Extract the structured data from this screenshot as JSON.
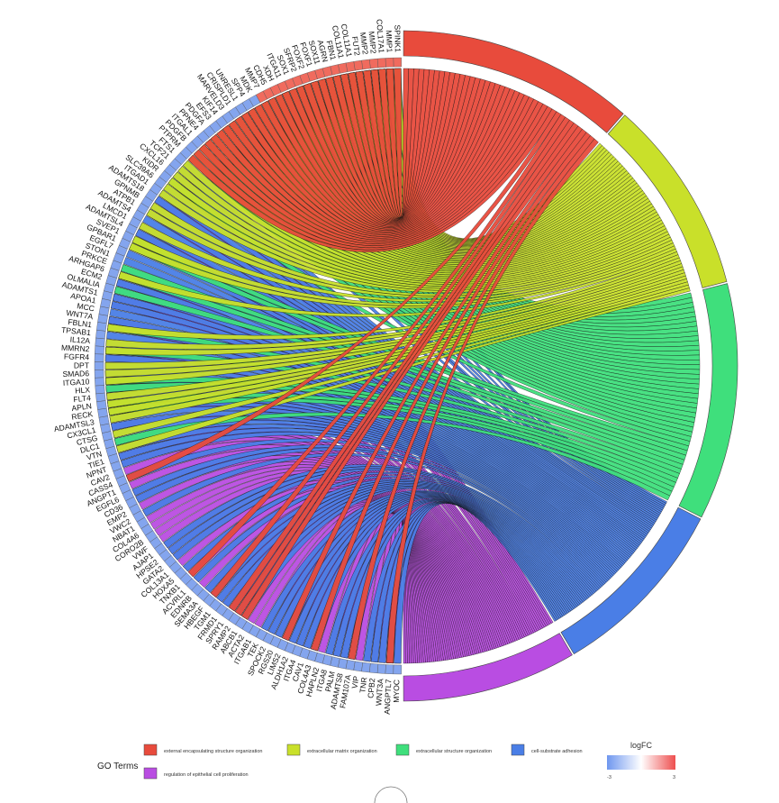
{
  "chart_data": {
    "type": "chord",
    "genes_ordered_from_top_clockwise_on_left": [
      "SPINK1",
      "MMP1",
      "COL17A1",
      "MMP2",
      "MMP2",
      "FUT2",
      "COL11A1",
      "COL11A1",
      "FBN1",
      "AGRN",
      "SOX11",
      "FOXF1",
      "FOXF2",
      "SFRP2",
      "SOX1",
      "ITGA11",
      "XDH",
      "CDH5",
      "MMP7",
      "MDK",
      "SPP4",
      "UNRESL1",
      "CRISPLD1",
      "MARVELD3",
      "KIF14",
      "EFS3",
      "PDGFA",
      "PPNE4",
      "ITGAL1",
      "PDGFB",
      "PTPRM",
      "FTS1",
      "TCF21",
      "CXCL16",
      "KIDR",
      "SLC39A6",
      "ITGAD1",
      "ADAMTS18",
      "GPNMB",
      "ATPB1",
      "ADAMTS4",
      "LMCD1",
      "ADAMTSL4",
      "SVEP1",
      "GPBAR1",
      "EGFL7",
      "STON1",
      "PRKCE",
      "ARHGAP6",
      "ECM2",
      "OLMALIA",
      "ADAMTS1",
      "APOA1",
      "MCC",
      "WNT7A",
      "FBLN1",
      "TPSAB1",
      "IL12A",
      "MMRN2",
      "FGFR4",
      "DPT",
      "SMAD6",
      "ITGA10",
      "HLX",
      "FLT4",
      "APLN",
      "RECK",
      "ADAMTSL3",
      "CX3CL1",
      "CTSG",
      "DLC1",
      "VTN",
      "TIE1",
      "NPNT",
      "CAV2",
      "CASS4",
      "ANGPT1",
      "EGFL6",
      "CD36",
      "EMP2",
      "VWC2",
      "NBAT1",
      "COL4A6",
      "CORO2B",
      "VWF",
      "AJAP1",
      "HPSE2",
      "GATA2",
      "COL13A1",
      "HOXA5",
      "TNXB1",
      "ACVRL1",
      "EDNRB",
      "SEMA3A",
      "HBEGF",
      "TGM1",
      "FRMD1",
      "SPRY1",
      "RAMP2",
      "ABCB1",
      "ACTA2",
      "ITGAB1",
      "TEK",
      "SPOCK2",
      "RGS20",
      "LIMS2",
      "ALDH1A2",
      "ITGA4",
      "CAV1",
      "COL4A3",
      "HAPLN2",
      "ITGA8",
      "PALM",
      "ADAMTS8",
      "FAM107A",
      "VIP",
      "TNR",
      "CPB2",
      "WNT3A",
      "ANGPTL7",
      "MYOC"
    ],
    "go_terms": [
      {
        "name": "external encapsulating structure organization",
        "color": "#e84b3c"
      },
      {
        "name": "extracellular matrix organization",
        "color": "#c9e02a"
      },
      {
        "name": "extracellular structure organization",
        "color": "#3fdf7c"
      },
      {
        "name": "cell-substrate adhesion",
        "color": "#4a7ee6"
      },
      {
        "name": "regulation of epithelial cell proliferation",
        "color": "#b94de2"
      }
    ],
    "go_term_arc_fractions": [
      0.23,
      0.19,
      0.23,
      0.18,
      0.17
    ],
    "logFC_scale": {
      "min": -3,
      "max": 3,
      "low_color": "#6f97ef",
      "mid_color": "#ffffff",
      "high_color": "#ee4f4f"
    },
    "up_regulated_gene_count": 19
  },
  "legend": {
    "title": "GO Terms",
    "items": [
      "external encapsulating structure organization",
      "extracellular matrix organization",
      "extracellular structure organization",
      "cell-substrate adhesion",
      "regulation of epithelial cell proliferation"
    ]
  },
  "scale": {
    "title": "logFC",
    "min_label": "-3",
    "max_label": "3"
  }
}
